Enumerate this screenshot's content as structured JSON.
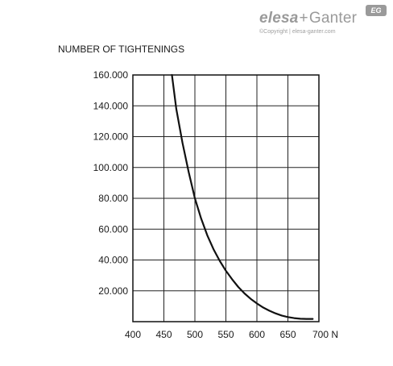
{
  "logo": {
    "brand_elesa": "elesa",
    "brand_plus": "+",
    "brand_ganter": "Ganter",
    "badge": "EG",
    "copyright": "©Copyright | elesa-ganter.com"
  },
  "chart_data": {
    "type": "line",
    "title": "",
    "ylabel": "NUMBER OF TIGHTENINGS",
    "xlabel": "",
    "x_unit": "N",
    "xlim": [
      400,
      700
    ],
    "ylim": [
      0,
      160000
    ],
    "x_ticks": [
      400,
      450,
      500,
      550,
      600,
      650,
      700
    ],
    "x_tick_labels": [
      "400",
      "450",
      "500",
      "550",
      "600",
      "650",
      "700 N"
    ],
    "y_ticks": [
      20000,
      40000,
      60000,
      80000,
      100000,
      120000,
      140000,
      160000
    ],
    "y_tick_labels": [
      "20.000",
      "40.000",
      "60.000",
      "80.000",
      "100.000",
      "120.000",
      "140.000",
      "160.000"
    ],
    "grid": true,
    "series": [
      {
        "color": "#111111",
        "x": [
          463,
          470,
          480,
          490,
          500,
          510,
          520,
          530,
          540,
          550,
          560,
          570,
          580,
          590,
          600,
          610,
          620,
          630,
          640,
          650,
          660,
          670,
          680,
          690
        ],
        "y": [
          160000,
          138000,
          116000,
          97000,
          80000,
          67000,
          56000,
          47000,
          39500,
          33000,
          27500,
          22500,
          18300,
          14800,
          11800,
          9200,
          7100,
          5400,
          4000,
          3000,
          2300,
          1900,
          1800,
          1800
        ]
      }
    ]
  }
}
